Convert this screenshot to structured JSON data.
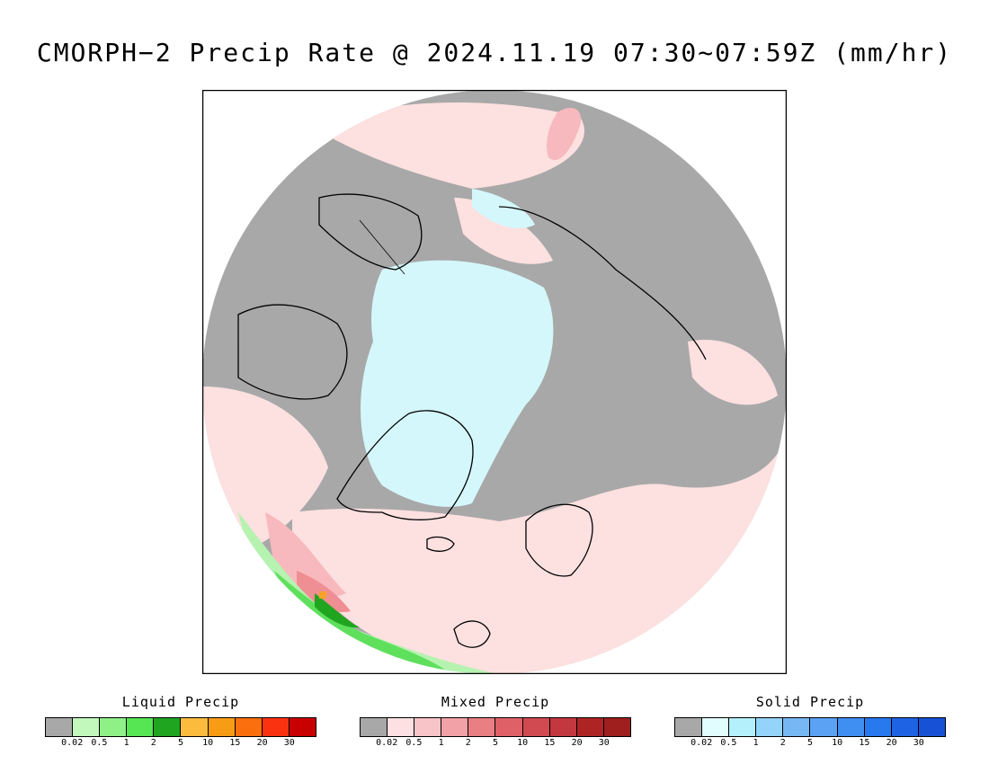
{
  "title": "CMORPH−2 Precip Rate @ 2024.11.19 07:30~07:59Z (mm/hr)",
  "map": {
    "projection": "north-polar-stereographic",
    "colors": {
      "no_precip": "#a8a8a8",
      "ocean_outline": "#ffffff",
      "coastline": "#000000",
      "mixed_light": "#fde0e0",
      "mixed_medium": "#f7b9bd",
      "mixed_heavy": "#ef8f93",
      "solid_light": "#d4f7fb",
      "liquid_light": "#b6f2b0",
      "liquid_medium": "#5fe05d",
      "liquid_heavy": "#1fa51f",
      "liquid_extreme": "#f8a22a"
    }
  },
  "legends": [
    {
      "title": "Liquid Precip",
      "colors": [
        "#a8a8a8",
        "#c3f8bd",
        "#8ff088",
        "#56e654",
        "#1fa51f",
        "#fbbb3c",
        "#f89c16",
        "#fb6f0e",
        "#fb3210",
        "#c80000"
      ],
      "ticks": [
        "0.02",
        "0.5",
        "1",
        "2",
        "5",
        "10",
        "15",
        "20",
        "30"
      ]
    },
    {
      "title": "Mixed Precip",
      "colors": [
        "#a8a8a8",
        "#fde0e2",
        "#f9c4c7",
        "#f2a1a6",
        "#e97e83",
        "#e06068",
        "#d14a52",
        "#c2383e",
        "#ae2424",
        "#9f1f1f"
      ],
      "ticks": [
        "0.02",
        "0.5",
        "1",
        "2",
        "5",
        "10",
        "15",
        "20",
        "30"
      ]
    },
    {
      "title": "Solid Precip",
      "colors": [
        "#a8a8a8",
        "#e2fdfd",
        "#b4f0fb",
        "#94d4fb",
        "#77b8f4",
        "#5ca2f4",
        "#3f8ff3",
        "#2878ee",
        "#1e63e4",
        "#1752d6"
      ],
      "ticks": [
        "0.02",
        "0.5",
        "1",
        "2",
        "5",
        "10",
        "15",
        "20",
        "30"
      ]
    }
  ]
}
